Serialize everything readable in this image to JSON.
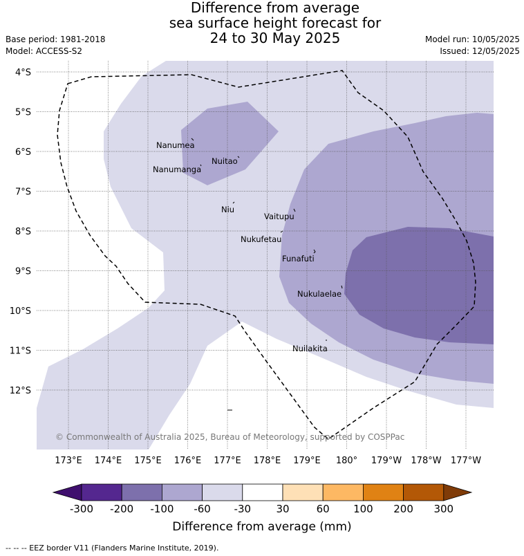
{
  "title": {
    "line1": "Difference from average",
    "line2": "sea surface height forecast for",
    "line3": "24 to 30 May 2025"
  },
  "meta": {
    "base_period": "Base period: 1981-2018",
    "model": "Model: ACCESS-S2",
    "model_run": "Model run: 10/05/2025",
    "issued": "Issued: 12/05/2025"
  },
  "map": {
    "lat_labels": [
      "4°S",
      "5°S",
      "6°S",
      "7°S",
      "8°S",
      "9°S",
      "10°S",
      "11°S",
      "12°S"
    ],
    "lon_labels": [
      "173°E",
      "174°E",
      "175°E",
      "176°E",
      "177°E",
      "178°E",
      "179°E",
      "180°",
      "179°W",
      "178°W",
      "177°W"
    ],
    "islands": [
      "Nanumea",
      "Nuitao",
      "Nanumanga",
      "Niu",
      "Vaitupu",
      "Nukufetau",
      "Funafuti",
      "Nukulaelae",
      "Nuilakita"
    ],
    "copyright": "© Commonwealth of Australia 2025, Bureau of Meteorology, supported by COSPPac"
  },
  "colorbar": {
    "ticks": [
      "-300",
      "-200",
      "-100",
      "-60",
      "-30",
      "30",
      "60",
      "100",
      "200",
      "300"
    ],
    "colors": [
      "#3f0f6e",
      "#54278f",
      "#7d70ac",
      "#ada7d0",
      "#dadaeb",
      "#ffffff",
      "#fee0b6",
      "#fdb863",
      "#e08214",
      "#b35806",
      "#7f3b08"
    ],
    "label": "Difference from average (mm)"
  },
  "footnote": "-- -- -- EEZ border V11 (Flanders Marine Institute, 2019)."
}
